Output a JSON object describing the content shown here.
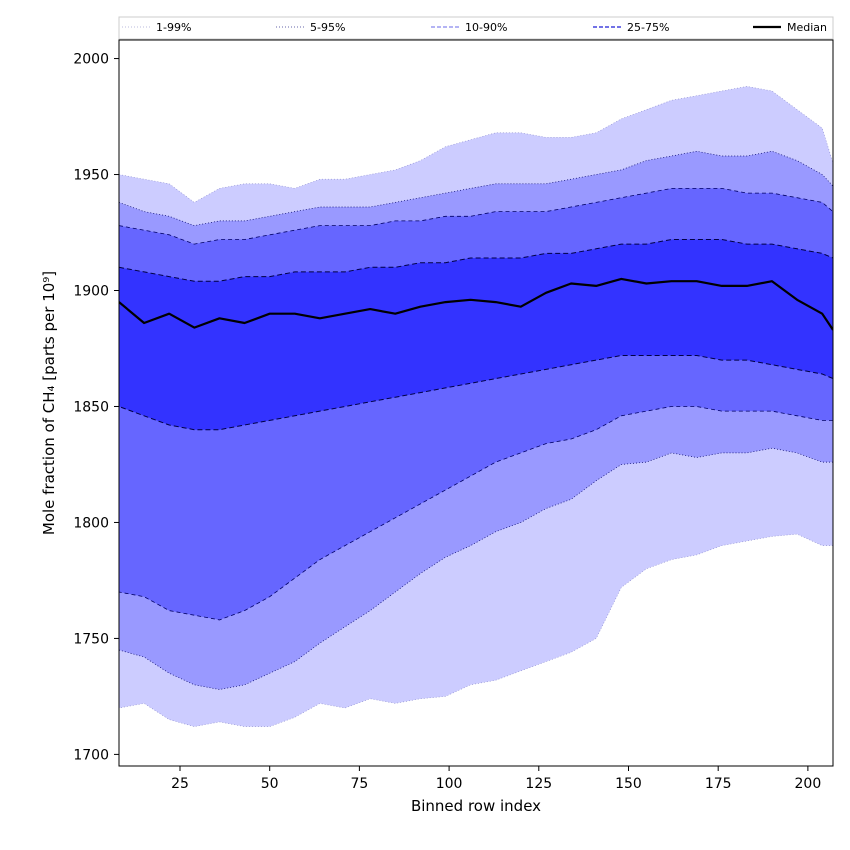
{
  "chart_data": {
    "type": "area",
    "xlabel": "Binned row index",
    "ylabel": "Mole fraction of CH₄ [parts per 10⁹]",
    "xlim": [
      8,
      207
    ],
    "ylim": [
      1695,
      2008
    ],
    "x_ticks": [
      25,
      50,
      75,
      100,
      125,
      150,
      175,
      200
    ],
    "y_ticks": [
      1700,
      1750,
      1800,
      1850,
      1900,
      1950,
      2000
    ],
    "grid": false,
    "legend_position": "top",
    "colors": {
      "band_1_99": "#ccccff",
      "band_5_95": "#9999ff",
      "band_10_90": "#6666ff",
      "band_25_75": "#3333ff",
      "median": "#000000"
    },
    "legend": [
      {
        "label": "1-99%",
        "style": "dotted-light"
      },
      {
        "label": "5-95%",
        "style": "dotted"
      },
      {
        "label": "10-90%",
        "style": "dashed-light"
      },
      {
        "label": "25-75%",
        "style": "dashed"
      },
      {
        "label": "Median",
        "style": "solid-black"
      }
    ],
    "x": [
      8,
      15,
      22,
      29,
      36,
      43,
      50,
      57,
      64,
      71,
      78,
      85,
      92,
      99,
      106,
      113,
      120,
      127,
      134,
      141,
      148,
      155,
      162,
      169,
      176,
      183,
      190,
      197,
      204,
      207
    ],
    "series": [
      {
        "name": "1-99%",
        "lower": [
          1720,
          1722,
          1715,
          1712,
          1714,
          1712,
          1712,
          1716,
          1722,
          1720,
          1724,
          1722,
          1724,
          1725,
          1730,
          1732,
          1736,
          1740,
          1744,
          1750,
          1772,
          1780,
          1784,
          1786,
          1790,
          1792,
          1794,
          1795,
          1790,
          1790
        ],
        "upper": [
          1950,
          1948,
          1946,
          1938,
          1944,
          1946,
          1946,
          1944,
          1948,
          1948,
          1950,
          1952,
          1956,
          1962,
          1965,
          1968,
          1968,
          1966,
          1966,
          1968,
          1974,
          1978,
          1982,
          1984,
          1986,
          1988,
          1986,
          1978,
          1970,
          1955
        ]
      },
      {
        "name": "5-95%",
        "lower": [
          1745,
          1742,
          1735,
          1730,
          1728,
          1730,
          1735,
          1740,
          1748,
          1755,
          1762,
          1770,
          1778,
          1785,
          1790,
          1796,
          1800,
          1806,
          1810,
          1818,
          1825,
          1826,
          1830,
          1828,
          1830,
          1830,
          1832,
          1830,
          1826,
          1826
        ],
        "upper": [
          1938,
          1934,
          1932,
          1928,
          1930,
          1930,
          1932,
          1934,
          1936,
          1936,
          1936,
          1938,
          1940,
          1942,
          1944,
          1946,
          1946,
          1946,
          1948,
          1950,
          1952,
          1956,
          1958,
          1960,
          1958,
          1958,
          1960,
          1956,
          1950,
          1945
        ]
      },
      {
        "name": "10-90%",
        "lower": [
          1770,
          1768,
          1762,
          1760,
          1758,
          1762,
          1768,
          1776,
          1784,
          1790,
          1796,
          1802,
          1808,
          1814,
          1820,
          1826,
          1830,
          1834,
          1836,
          1840,
          1846,
          1848,
          1850,
          1850,
          1848,
          1848,
          1848,
          1846,
          1844,
          1844
        ],
        "upper": [
          1928,
          1926,
          1924,
          1920,
          1922,
          1922,
          1924,
          1926,
          1928,
          1928,
          1928,
          1930,
          1930,
          1932,
          1932,
          1934,
          1934,
          1934,
          1936,
          1938,
          1940,
          1942,
          1944,
          1944,
          1944,
          1942,
          1942,
          1940,
          1938,
          1934
        ]
      },
      {
        "name": "25-75%",
        "lower": [
          1850,
          1846,
          1842,
          1840,
          1840,
          1842,
          1844,
          1846,
          1848,
          1850,
          1852,
          1854,
          1856,
          1858,
          1860,
          1862,
          1864,
          1866,
          1868,
          1870,
          1872,
          1872,
          1872,
          1872,
          1870,
          1870,
          1868,
          1866,
          1864,
          1862
        ],
        "upper": [
          1910,
          1908,
          1906,
          1904,
          1904,
          1906,
          1906,
          1908,
          1908,
          1908,
          1910,
          1910,
          1912,
          1912,
          1914,
          1914,
          1914,
          1916,
          1916,
          1918,
          1920,
          1920,
          1922,
          1922,
          1922,
          1920,
          1920,
          1918,
          1916,
          1914
        ]
      },
      {
        "name": "Median",
        "values": [
          1895,
          1886,
          1890,
          1884,
          1888,
          1886,
          1890,
          1890,
          1888,
          1890,
          1892,
          1890,
          1893,
          1895,
          1896,
          1895,
          1893,
          1899,
          1903,
          1902,
          1905,
          1903,
          1904,
          1904,
          1902,
          1902,
          1904,
          1896,
          1890,
          1883
        ]
      }
    ]
  }
}
